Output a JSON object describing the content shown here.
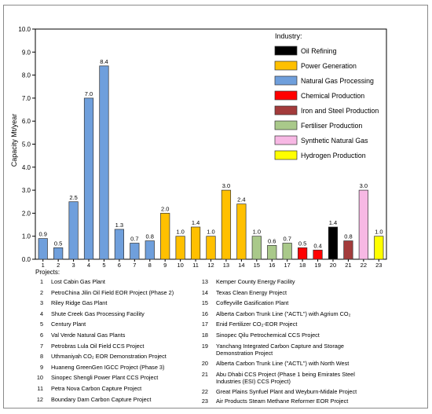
{
  "chart_data": {
    "type": "bar",
    "ylabel": "Capacity Mt/year",
    "ylim": [
      0,
      10
    ],
    "yticks": [
      "0.0",
      "1.0",
      "2.0",
      "3.0",
      "4.0",
      "5.0",
      "6.0",
      "7.0",
      "8.0",
      "9.0",
      "10.0"
    ],
    "categories": [
      "1",
      "2",
      "3",
      "4",
      "5",
      "6",
      "7",
      "8",
      "9",
      "10",
      "11",
      "12",
      "13",
      "14",
      "15",
      "16",
      "17",
      "18",
      "19",
      "20",
      "21",
      "22",
      "23"
    ],
    "values": [
      0.9,
      0.5,
      2.5,
      7.0,
      8.4,
      1.3,
      0.7,
      0.8,
      2.0,
      1.0,
      1.4,
      1.0,
      3.0,
      2.4,
      1.0,
      0.6,
      0.7,
      0.5,
      0.4,
      1.4,
      0.8,
      3.0,
      1.0
    ],
    "value_labels": [
      "0.9",
      "0.5",
      "2.5",
      "7.0",
      "8.4",
      "1.3",
      "0.7",
      "0.8",
      "2.0",
      "1.0",
      "1.4",
      "1.0",
      "3.0",
      "2.4",
      "1.0",
      "0.6",
      "0.7",
      "0.5",
      "0.4",
      "1.4",
      "0.8",
      "3.0",
      "1.0"
    ],
    "industry_of_bar": [
      2,
      2,
      2,
      2,
      2,
      2,
      2,
      2,
      1,
      1,
      1,
      1,
      1,
      1,
      5,
      5,
      5,
      3,
      3,
      0,
      4,
      6,
      7
    ],
    "legend": {
      "title": "Industry:",
      "placement": "top-right",
      "entries": [
        {
          "name": "Oil Refining",
          "color": "#000000"
        },
        {
          "name": "Power Generation",
          "color": "#ffc000"
        },
        {
          "name": "Natural Gas Processing",
          "color": "#6f9fdc"
        },
        {
          "name": "Chemical Production",
          "color": "#ff0000"
        },
        {
          "name": "Iron and Steel Production",
          "color": "#a33b3b"
        },
        {
          "name": "Fertiliser Production",
          "color": "#a9c98a"
        },
        {
          "name": "Synthetic Natural Gas",
          "color": "#f7b8e4"
        },
        {
          "name": "Hydrogen Production",
          "color": "#ffff00"
        }
      ]
    },
    "grid": false
  },
  "projects_heading": "Projects:",
  "projects": [
    {
      "num": "1",
      "name": "Lost Cabin Gas Plant"
    },
    {
      "num": "2",
      "name": "PetroChina Jilin Oil Field EOR Project (Phase 2)"
    },
    {
      "num": "3",
      "name": "Riley Ridge Gas Plant"
    },
    {
      "num": "4",
      "name": "Shute Creek Gas Processing Facility"
    },
    {
      "num": "5",
      "name": "Century Plant"
    },
    {
      "num": "6",
      "name": "Val Verde Natural Gas Plants"
    },
    {
      "num": "7",
      "name": "Petrobras Lula Oil Field CCS Project"
    },
    {
      "num": "8",
      "name": "Uthmaniyah CO₂ EOR Demonstration Project"
    },
    {
      "num": "9",
      "name": "Huaneng GreenGen IGCC Project (Phase 3)"
    },
    {
      "num": "10",
      "name": "Sinopec Shengli Power Plant CCS Project"
    },
    {
      "num": "11",
      "name": "Petra Nova Carbon Capture Project"
    },
    {
      "num": "12",
      "name": "Boundary Dam Carbon Capture Project"
    },
    {
      "num": "13",
      "name": "Kemper County Energy Facility"
    },
    {
      "num": "14",
      "name": "Texas Clean Energy Project"
    },
    {
      "num": "15",
      "name": "Coffeyville Gasification Plant"
    },
    {
      "num": "16",
      "name": "Alberta Carbon Trunk Line (\"ACTL\") with Agrium CO₂"
    },
    {
      "num": "17",
      "name": "Enid Fertilizer CO₂-EOR Project"
    },
    {
      "num": "18",
      "name": "Sinopec Qilu Petrochemical CCS Project"
    },
    {
      "num": "19",
      "name": "Yanchang Integrated Carbon Capture and Storage Demonstration Project"
    },
    {
      "num": "20",
      "name": "Alberta Carbon Trunk Line (\"ACTL\") with North West"
    },
    {
      "num": "21",
      "name": "Abu Dhabi CCS Project (Phase 1 being Emirates Steel Industries (ESI) CCS Project)"
    },
    {
      "num": "22",
      "name": "Great Plains Synfuel Plant and Weyburn-Midale Project"
    },
    {
      "num": "23",
      "name": "Air Products Steam Methane Reformer EOR Project"
    }
  ]
}
